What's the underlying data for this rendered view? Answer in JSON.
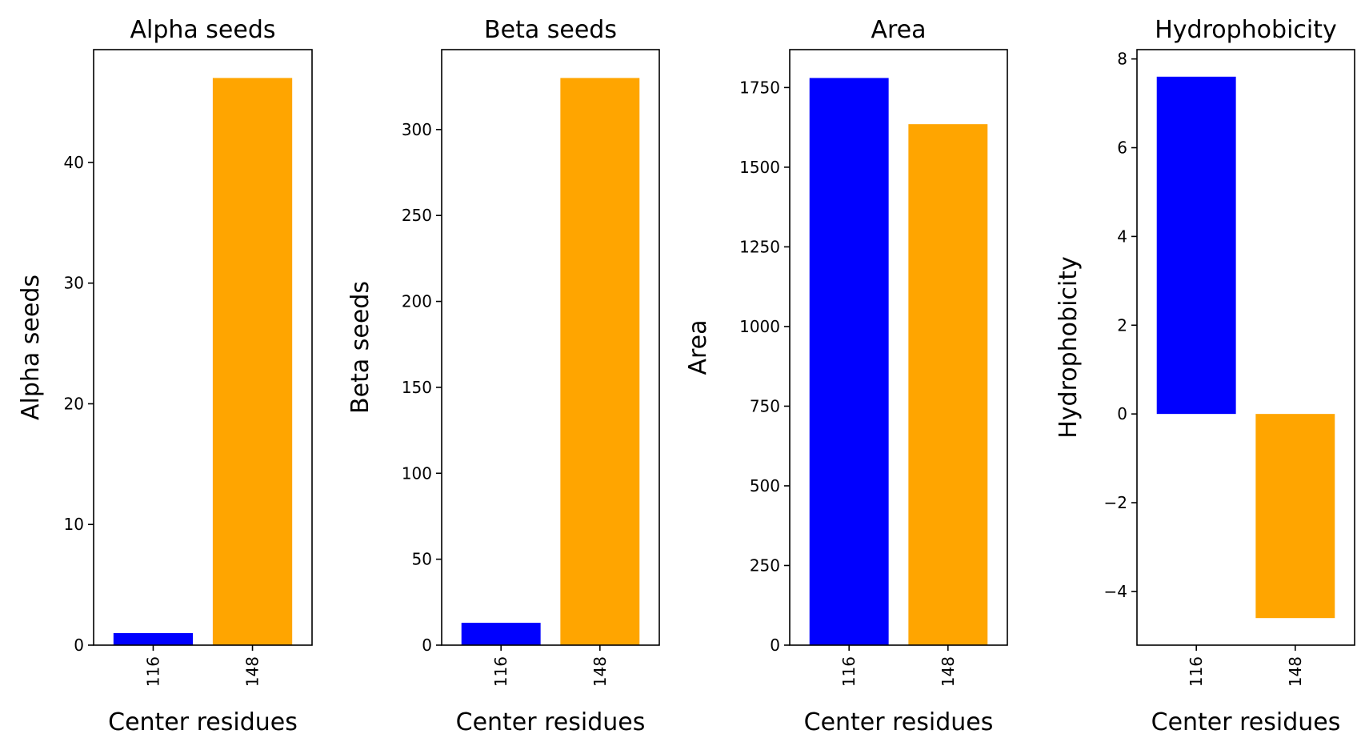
{
  "colors": [
    "#0000ff",
    "#ffa500"
  ],
  "chart_data": [
    {
      "type": "bar",
      "title": "Alpha seeds",
      "xlabel": "Center residues",
      "ylabel": "Alpha seeds",
      "categories": [
        "116",
        "148"
      ],
      "values": [
        1,
        47
      ],
      "ylim": [
        0,
        49.35
      ],
      "yticks": [
        0,
        10,
        20,
        30,
        40
      ],
      "ytick_labels": [
        "0",
        "10",
        "20",
        "30",
        "40"
      ]
    },
    {
      "type": "bar",
      "title": "Beta seeds",
      "xlabel": "Center residues",
      "ylabel": "Beta seeds",
      "categories": [
        "116",
        "148"
      ],
      "values": [
        13,
        330
      ],
      "ylim": [
        0,
        346.5
      ],
      "yticks": [
        0,
        50,
        100,
        150,
        200,
        250,
        300
      ],
      "ytick_labels": [
        "0",
        "50",
        "100",
        "150",
        "200",
        "250",
        "300"
      ]
    },
    {
      "type": "bar",
      "title": "Area",
      "xlabel": "Center residues",
      "ylabel": "Area",
      "categories": [
        "116",
        "148"
      ],
      "values": [
        1780,
        1635
      ],
      "ylim": [
        0,
        1869
      ],
      "yticks": [
        0,
        250,
        500,
        750,
        1000,
        1250,
        1500,
        1750
      ],
      "ytick_labels": [
        "0",
        "250",
        "500",
        "750",
        "1000",
        "1250",
        "1500",
        "1750"
      ]
    },
    {
      "type": "bar",
      "title": "Hydrophobicity",
      "xlabel": "Center residues",
      "ylabel": "Hydrophobicity",
      "categories": [
        "116",
        "148"
      ],
      "values": [
        7.6,
        -4.6
      ],
      "ylim": [
        -5.21,
        8.21
      ],
      "yticks": [
        -4,
        -2,
        0,
        2,
        4,
        6,
        8
      ],
      "ytick_labels": [
        "−4",
        "−2",
        "0",
        "2",
        "4",
        "6",
        "8"
      ]
    }
  ]
}
